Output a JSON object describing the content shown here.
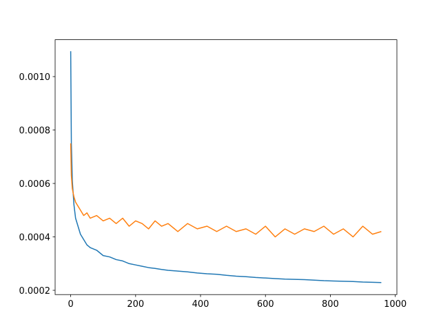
{
  "chart_data": {
    "type": "line",
    "x": [
      0,
      2,
      5,
      10,
      15,
      20,
      30,
      40,
      50,
      60,
      80,
      100,
      120,
      140,
      160,
      180,
      200,
      220,
      240,
      260,
      280,
      300,
      330,
      360,
      390,
      420,
      450,
      480,
      510,
      540,
      570,
      600,
      630,
      660,
      690,
      720,
      750,
      780,
      810,
      840,
      870,
      900,
      930,
      957
    ],
    "series": [
      {
        "color": "#1f77b4",
        "values": [
          0.001095,
          0.00075,
          0.00061,
          0.00052,
          0.00047,
          0.00045,
          0.00041,
          0.00039,
          0.00037,
          0.00036,
          0.00035,
          0.00033,
          0.000325,
          0.000315,
          0.00031,
          0.0003,
          0.000295,
          0.00029,
          0.000285,
          0.000282,
          0.000278,
          0.000275,
          0.000272,
          0.000269,
          0.000265,
          0.000262,
          0.00026,
          0.000256,
          0.000253,
          0.000251,
          0.000248,
          0.000246,
          0.000244,
          0.000242,
          0.000241,
          0.00024,
          0.000238,
          0.000236,
          0.000235,
          0.000234,
          0.000233,
          0.000231,
          0.00023,
          0.000229
        ]
      },
      {
        "color": "#ff7f0e",
        "values": [
          0.00075,
          0.00063,
          0.00058,
          0.00055,
          0.00053,
          0.00052,
          0.0005,
          0.00048,
          0.00049,
          0.00047,
          0.00048,
          0.00046,
          0.00047,
          0.00045,
          0.00047,
          0.00044,
          0.00046,
          0.00045,
          0.00043,
          0.00046,
          0.00044,
          0.00045,
          0.00042,
          0.00045,
          0.00043,
          0.00044,
          0.00042,
          0.00044,
          0.00042,
          0.00043,
          0.00041,
          0.00044,
          0.0004,
          0.00043,
          0.00041,
          0.00043,
          0.00042,
          0.00044,
          0.00041,
          0.00043,
          0.0004,
          0.00044,
          0.00041,
          0.00042
        ]
      }
    ],
    "xlim": [
      -48,
      1005
    ],
    "xticks": [
      0,
      200,
      400,
      600,
      800,
      1000
    ],
    "ylim": [
      0.000184,
      0.001138
    ],
    "yticks": [
      0.0002,
      0.0004,
      0.0006,
      0.0008,
      {
        "value": 0.001,
        "label": "0.0010"
      }
    ]
  }
}
